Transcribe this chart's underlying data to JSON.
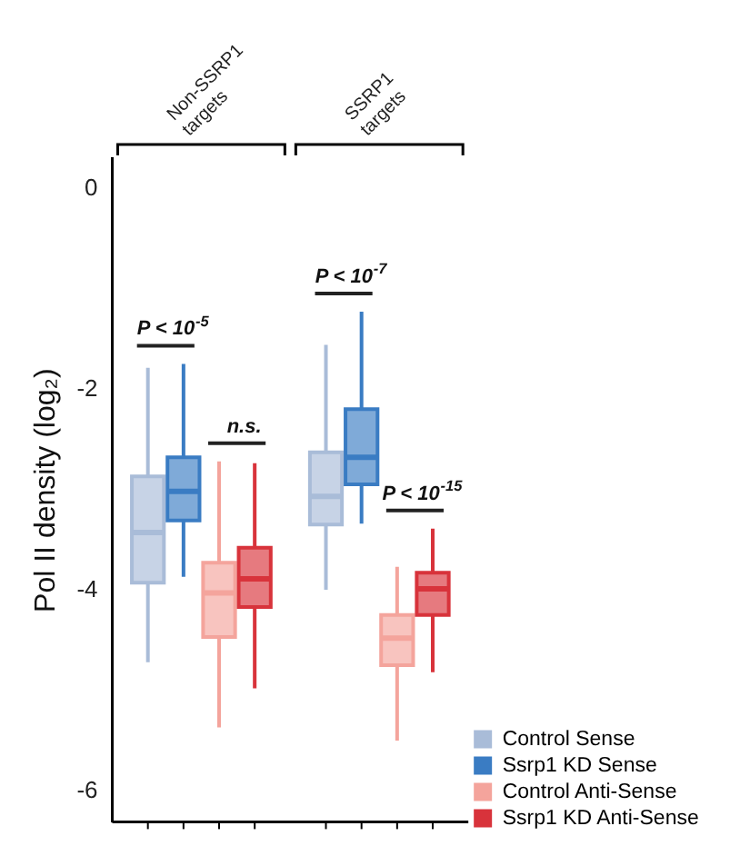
{
  "chart_data": {
    "type": "box",
    "ylabel": "Pol II density (log₂)",
    "categories": [
      "Non-SSRP1 targets",
      "SSRP1 targets"
    ],
    "ylim": [
      -6.3,
      0.3
    ],
    "yticks": [
      0,
      -2,
      -4,
      -6
    ],
    "grid": false,
    "legend": "bottom right",
    "series": [
      {
        "name": "Control Sense",
        "color": "#a9bcd8",
        "boxes": [
          {
            "low": -4.71,
            "q1": -3.92,
            "median": -3.42,
            "q3": -2.86,
            "high": -1.78
          },
          {
            "low": -3.99,
            "q1": -3.34,
            "median": -3.06,
            "q3": -2.62,
            "high": -1.55
          }
        ]
      },
      {
        "name": "Ssrp1 KD Sense",
        "color": "#3a7cc3",
        "boxes": [
          {
            "low": -3.86,
            "q1": -3.3,
            "median": -3.01,
            "q3": -2.67,
            "high": -1.74
          },
          {
            "low": -3.33,
            "q1": -2.94,
            "median": -2.67,
            "q3": -2.19,
            "high": -1.22
          }
        ]
      },
      {
        "name": "Control Anti-Sense",
        "color": "#f4a49c",
        "boxes": [
          {
            "low": -5.36,
            "q1": -4.46,
            "median": -4.02,
            "q3": -3.72,
            "high": -2.71
          },
          {
            "low": -5.49,
            "q1": -4.74,
            "median": -4.47,
            "q3": -4.24,
            "high": -3.76
          }
        ]
      },
      {
        "name": "Ssrp1 KD Anti-Sense",
        "color": "#d8333b",
        "boxes": [
          {
            "low": -4.97,
            "q1": -4.16,
            "median": -3.88,
            "q3": -3.57,
            "high": -2.73
          },
          {
            "low": -4.81,
            "q1": -4.24,
            "median": -3.98,
            "q3": -3.82,
            "high": -3.38
          }
        ]
      }
    ],
    "annotations": [
      "P < 10$^{-5}$",
      "n.s.",
      "P < 10$^{-7}$",
      "P < 10$^{-15}$"
    ]
  }
}
